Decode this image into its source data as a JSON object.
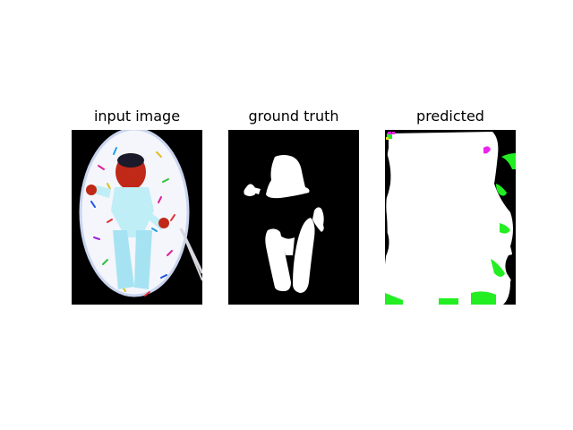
{
  "figure": {
    "panels": [
      {
        "title": "input image"
      },
      {
        "title": "ground truth"
      },
      {
        "title": "predicted"
      }
    ]
  },
  "colors": {
    "background": "#000000",
    "mask_foreground": "#ffffff",
    "prediction_error_green": "#22ee22",
    "prediction_error_magenta": "#ee22ee"
  }
}
